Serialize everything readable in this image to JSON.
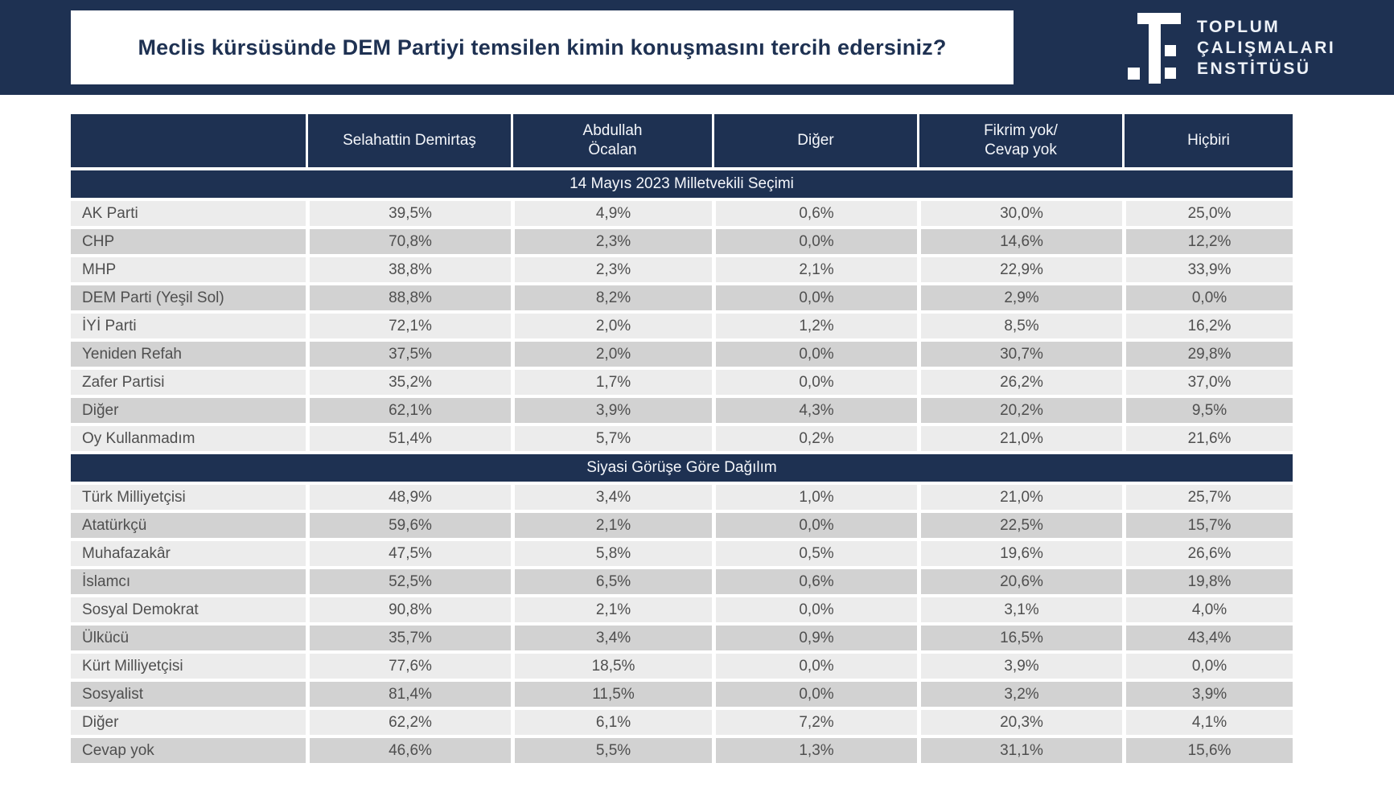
{
  "banner": {
    "title": "Meclis kürsüsünde DEM Partiyi temsilen kimin konuşmasını tercih edersiniz?",
    "logo": {
      "mark": "ti-monogram-icon",
      "line1": "TOPLUM",
      "line2": "ÇALIŞMALARI",
      "line3": "ENSTİTÜSÜ"
    }
  },
  "colors": {
    "navy": "#1e3152",
    "row_light": "#ececec",
    "row_dark": "#d2d2d2",
    "data_text": "#4f4f4f",
    "logo_text": "#eef2f8"
  },
  "chart_data": {
    "type": "table",
    "title": "Meclis kürsüsünde DEM Partiyi temsilen kimin konuşmasını tercih edersiniz?",
    "columns": [
      "",
      "Selahattin Demirtaş",
      "Abdullah\nÖcalan",
      "Diğer",
      "Fikrim yok/\nCevap yok",
      "Hiçbiri"
    ],
    "sections": [
      {
        "header": "14 Mayıs 2023 Milletvekili Seçimi",
        "rows": [
          {
            "label": "AK Parti",
            "values": [
              "39,5%",
              "4,9%",
              "0,6%",
              "30,0%",
              "25,0%"
            ]
          },
          {
            "label": "CHP",
            "values": [
              "70,8%",
              "2,3%",
              "0,0%",
              "14,6%",
              "12,2%"
            ]
          },
          {
            "label": "MHP",
            "values": [
              "38,8%",
              "2,3%",
              "2,1%",
              "22,9%",
              "33,9%"
            ]
          },
          {
            "label": "DEM Parti (Yeşil Sol)",
            "values": [
              "88,8%",
              "8,2%",
              "0,0%",
              "2,9%",
              "0,0%"
            ]
          },
          {
            "label": "İYİ Parti",
            "values": [
              "72,1%",
              "2,0%",
              "1,2%",
              "8,5%",
              "16,2%"
            ]
          },
          {
            "label": "Yeniden Refah",
            "values": [
              "37,5%",
              "2,0%",
              "0,0%",
              "30,7%",
              "29,8%"
            ]
          },
          {
            "label": "Zafer Partisi",
            "values": [
              "35,2%",
              "1,7%",
              "0,0%",
              "26,2%",
              "37,0%"
            ]
          },
          {
            "label": "Diğer",
            "values": [
              "62,1%",
              "3,9%",
              "4,3%",
              "20,2%",
              "9,5%"
            ]
          },
          {
            "label": "Oy Kullanmadım",
            "values": [
              "51,4%",
              "5,7%",
              "0,2%",
              "21,0%",
              "21,6%"
            ]
          }
        ]
      },
      {
        "header": "Siyasi Görüşe Göre Dağılım",
        "rows": [
          {
            "label": "Türk Milliyetçisi",
            "values": [
              "48,9%",
              "3,4%",
              "1,0%",
              "21,0%",
              "25,7%"
            ]
          },
          {
            "label": "Atatürkçü",
            "values": [
              "59,6%",
              "2,1%",
              "0,0%",
              "22,5%",
              "15,7%"
            ]
          },
          {
            "label": "Muhafazakâr",
            "values": [
              "47,5%",
              "5,8%",
              "0,5%",
              "19,6%",
              "26,6%"
            ]
          },
          {
            "label": "İslamcı",
            "values": [
              "52,5%",
              "6,5%",
              "0,6%",
              "20,6%",
              "19,8%"
            ]
          },
          {
            "label": "Sosyal Demokrat",
            "values": [
              "90,8%",
              "2,1%",
              "0,0%",
              "3,1%",
              "4,0%"
            ]
          },
          {
            "label": "Ülkücü",
            "values": [
              "35,7%",
              "3,4%",
              "0,9%",
              "16,5%",
              "43,4%"
            ]
          },
          {
            "label": "Kürt Milliyetçisi",
            "values": [
              "77,6%",
              "18,5%",
              "0,0%",
              "3,9%",
              "0,0%"
            ]
          },
          {
            "label": "Sosyalist",
            "values": [
              "81,4%",
              "11,5%",
              "0,0%",
              "3,2%",
              "3,9%"
            ]
          },
          {
            "label": "Diğer",
            "values": [
              "62,2%",
              "6,1%",
              "7,2%",
              "20,3%",
              "4,1%"
            ]
          },
          {
            "label": "Cevap yok",
            "values": [
              "46,6%",
              "5,5%",
              "1,3%",
              "31,1%",
              "15,6%"
            ]
          }
        ]
      }
    ]
  }
}
